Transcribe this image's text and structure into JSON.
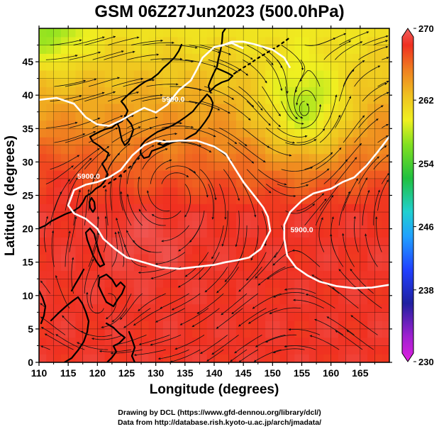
{
  "title": "GSM 06Z27Jun2023 (500.0hPa)",
  "xlabel": "Longitude (degrees)",
  "ylabel": "Latitude  (degrees)",
  "credits": [
    "Drawing by DCL (https://www.gfd-dennou.org/library/dcl/)",
    "Data from http://database.rish.kyoto-u.ac.jp/arch/jmadata/"
  ],
  "colors": {
    "contour": "#ffffff",
    "coast": "#000000",
    "grid": "#000000",
    "streamline": "#111111"
  },
  "chart_data": {
    "type": "heatmap",
    "projection": "equirectangular",
    "xlim": [
      110,
      170
    ],
    "ylim": [
      0,
      50
    ],
    "x_ticks": [
      "110",
      "115",
      "120",
      "125",
      "130",
      "135",
      "140",
      "145",
      "150",
      "155",
      "160",
      "165"
    ],
    "y_ticks": [
      "0",
      "5",
      "10",
      "15",
      "20",
      "25",
      "30",
      "35",
      "40",
      "45"
    ],
    "colorbar": {
      "range": [
        230,
        270
      ],
      "tick_labels": [
        "270",
        "262",
        "254",
        "246",
        "238",
        "230"
      ],
      "stops": [
        {
          "value": 230,
          "color": "#e020e0"
        },
        {
          "value": 233,
          "color": "#a020d0"
        },
        {
          "value": 237,
          "color": "#2020a0"
        },
        {
          "value": 241,
          "color": "#2040ff"
        },
        {
          "value": 245,
          "color": "#20a0ff"
        },
        {
          "value": 248,
          "color": "#20d0d0"
        },
        {
          "value": 252,
          "color": "#20c040"
        },
        {
          "value": 256,
          "color": "#80e020"
        },
        {
          "value": 259,
          "color": "#f0f020"
        },
        {
          "value": 262,
          "color": "#f0c020"
        },
        {
          "value": 265,
          "color": "#f08020"
        },
        {
          "value": 268,
          "color": "#f03020"
        },
        {
          "value": 270,
          "color": "#f06060"
        }
      ]
    },
    "contours": [
      {
        "label": "5900.0",
        "label_at": [
          133,
          39
        ],
        "points": [
          [
            110,
            39.3
          ],
          [
            113,
            39.6
          ],
          [
            116,
            38.7
          ],
          [
            118,
            36.7
          ],
          [
            120,
            35.6
          ],
          [
            122,
            35.4
          ],
          [
            124,
            36.2
          ],
          [
            126,
            37.2
          ],
          [
            128,
            38.1
          ],
          [
            130,
            37.4
          ],
          [
            132,
            38.6
          ],
          [
            134,
            40.8
          ],
          [
            136,
            42.2
          ],
          [
            137,
            43.8
          ],
          [
            138,
            45.6
          ],
          [
            140,
            47.2
          ],
          [
            143,
            47.8
          ],
          [
            145,
            47.0
          ]
        ]
      },
      {
        "label": "",
        "points": [
          [
            141,
            47.3
          ],
          [
            143,
            48.0
          ],
          [
            145,
            48.0
          ],
          [
            147,
            47.6
          ],
          [
            150,
            46.8
          ],
          [
            152,
            45.6
          ],
          [
            153,
            44.1
          ]
        ]
      },
      {
        "label": "5900.0",
        "label_at": [
          118.5,
          27.5
        ],
        "points": [
          [
            130,
            33.2
          ],
          [
            128,
            32.5
          ],
          [
            126,
            31.0
          ],
          [
            124,
            28.8
          ],
          [
            122,
            27.7
          ],
          [
            120,
            27.0
          ],
          [
            118,
            26.6
          ],
          [
            116,
            25.8
          ],
          [
            115,
            23.5
          ],
          [
            116,
            22.3
          ],
          [
            118,
            21.5
          ],
          [
            120,
            20.0
          ],
          [
            121,
            18.5
          ],
          [
            123,
            17.0
          ],
          [
            125,
            15.7
          ],
          [
            127,
            15.2
          ],
          [
            129,
            14.7
          ],
          [
            131,
            14.2
          ],
          [
            134,
            14.0
          ],
          [
            137,
            14.3
          ],
          [
            140,
            14.6
          ],
          [
            142,
            15.0
          ],
          [
            144,
            15.3
          ],
          [
            146,
            15.7
          ],
          [
            148,
            17.0
          ],
          [
            149.6,
            19.7
          ],
          [
            149.2,
            21.8
          ],
          [
            148.4,
            23.2
          ],
          [
            147,
            24.8
          ],
          [
            145,
            27.0
          ],
          [
            143.5,
            29.1
          ],
          [
            142,
            31.2
          ],
          [
            140,
            32.3
          ],
          [
            137,
            33.2
          ],
          [
            134,
            33.2
          ],
          [
            131.5,
            33.0
          ],
          [
            130,
            33.2
          ]
        ]
      },
      {
        "label": "5900.0",
        "label_at": [
          155,
          19.5
        ],
        "points": [
          [
            170,
            33.8
          ],
          [
            168,
            31.5
          ],
          [
            166,
            29.4
          ],
          [
            164,
            27.7
          ],
          [
            162,
            27.0
          ],
          [
            160,
            26.0
          ],
          [
            157,
            25.3
          ],
          [
            155,
            24.2
          ],
          [
            153,
            22.5
          ],
          [
            152,
            20.6
          ],
          [
            152,
            18.5
          ],
          [
            152.5,
            16.0
          ],
          [
            154,
            14.2
          ],
          [
            156,
            13.0
          ],
          [
            158,
            12.1
          ],
          [
            161,
            11.4
          ],
          [
            164,
            11.1
          ],
          [
            167,
            11.2
          ],
          [
            170,
            11.6
          ]
        ]
      }
    ],
    "cyclones": [
      {
        "lon": 155.3,
        "lat": 37.2
      },
      {
        "lon": 132.8,
        "lat": 25.6
      }
    ],
    "grid": true,
    "colorbar_position": "right"
  }
}
